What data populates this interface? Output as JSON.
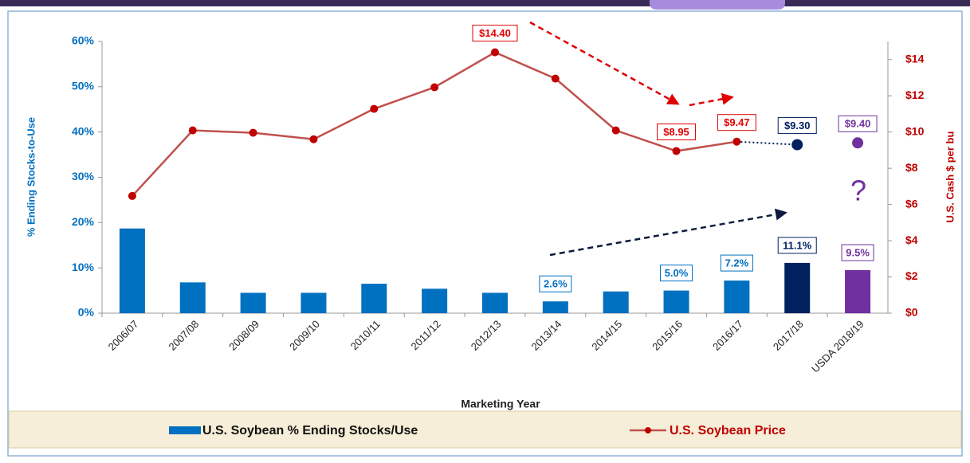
{
  "chart_data": {
    "type": "bar",
    "categories": [
      "2006/07",
      "2007/08",
      "2008/09",
      "2009/10",
      "2010/11",
      "2011/12",
      "2012/13",
      "2013/14",
      "2014/15",
      "2015/16",
      "2016/17",
      "2017/18",
      "USDA 2018/19"
    ],
    "x_label": "Marketing Year",
    "y_label": "% Ending Stocks-to-Use",
    "y2_label": "U.S. Cash $ per bu",
    "annotation": "?",
    "ylim": [
      0,
      60
    ],
    "yticks": [
      {
        "value": 0,
        "label": "0%"
      },
      {
        "value": 10,
        "label": "10%"
      },
      {
        "value": 20,
        "label": "20%"
      },
      {
        "value": 30,
        "label": "30%"
      },
      {
        "value": 40,
        "label": "40%"
      },
      {
        "value": 50,
        "label": "50%"
      },
      {
        "value": 60,
        "label": "60%"
      }
    ],
    "y2lim": [
      0,
      15
    ],
    "y2ticks": [
      {
        "value": 0,
        "label": "$0"
      },
      {
        "value": 2,
        "label": "$2"
      },
      {
        "value": 4,
        "label": "$4"
      },
      {
        "value": 6,
        "label": "$6"
      },
      {
        "value": 8,
        "label": "$8"
      },
      {
        "value": 10,
        "label": "$10"
      },
      {
        "value": 12,
        "label": "$12"
      },
      {
        "value": 14,
        "label": "$14"
      }
    ],
    "series": [
      {
        "name": "U.S. Soybean % Ending Stocks/Use",
        "type": "bar",
        "color": "#0070c0",
        "point_colors": [
          "#0070c0",
          "#0070c0",
          "#0070c0",
          "#0070c0",
          "#0070c0",
          "#0070c0",
          "#0070c0",
          "#0070c0",
          "#0070c0",
          "#0070c0",
          "#0070c0",
          "#002060",
          "#7030a0"
        ],
        "values": [
          18.7,
          6.8,
          4.5,
          4.5,
          6.5,
          5.4,
          4.5,
          2.6,
          4.8,
          5.0,
          7.2,
          11.1,
          9.5
        ],
        "value_labels": [
          null,
          null,
          null,
          null,
          null,
          null,
          null,
          "2.6%",
          null,
          "5.0%",
          "7.2%",
          "11.1%",
          "9.5%"
        ]
      },
      {
        "name": "U.S. Soybean Price",
        "type": "line",
        "axis": "y2",
        "color": "#c0504d",
        "marker_color": "#c00000",
        "point_colors": [
          "#c00000",
          "#c00000",
          "#c00000",
          "#c00000",
          "#c00000",
          "#c00000",
          "#c00000",
          "#c00000",
          "#c00000",
          "#c00000",
          "#c00000",
          "#002060",
          "#7030a0"
        ],
        "values": [
          6.47,
          10.09,
          9.96,
          9.6,
          11.28,
          12.47,
          14.4,
          12.95,
          10.09,
          8.95,
          9.47,
          9.3,
          9.4
        ],
        "value_labels": [
          null,
          null,
          null,
          null,
          null,
          null,
          "$14.40",
          null,
          null,
          "$8.95",
          "$9.47",
          "$9.30",
          "$9.40"
        ]
      }
    ]
  }
}
